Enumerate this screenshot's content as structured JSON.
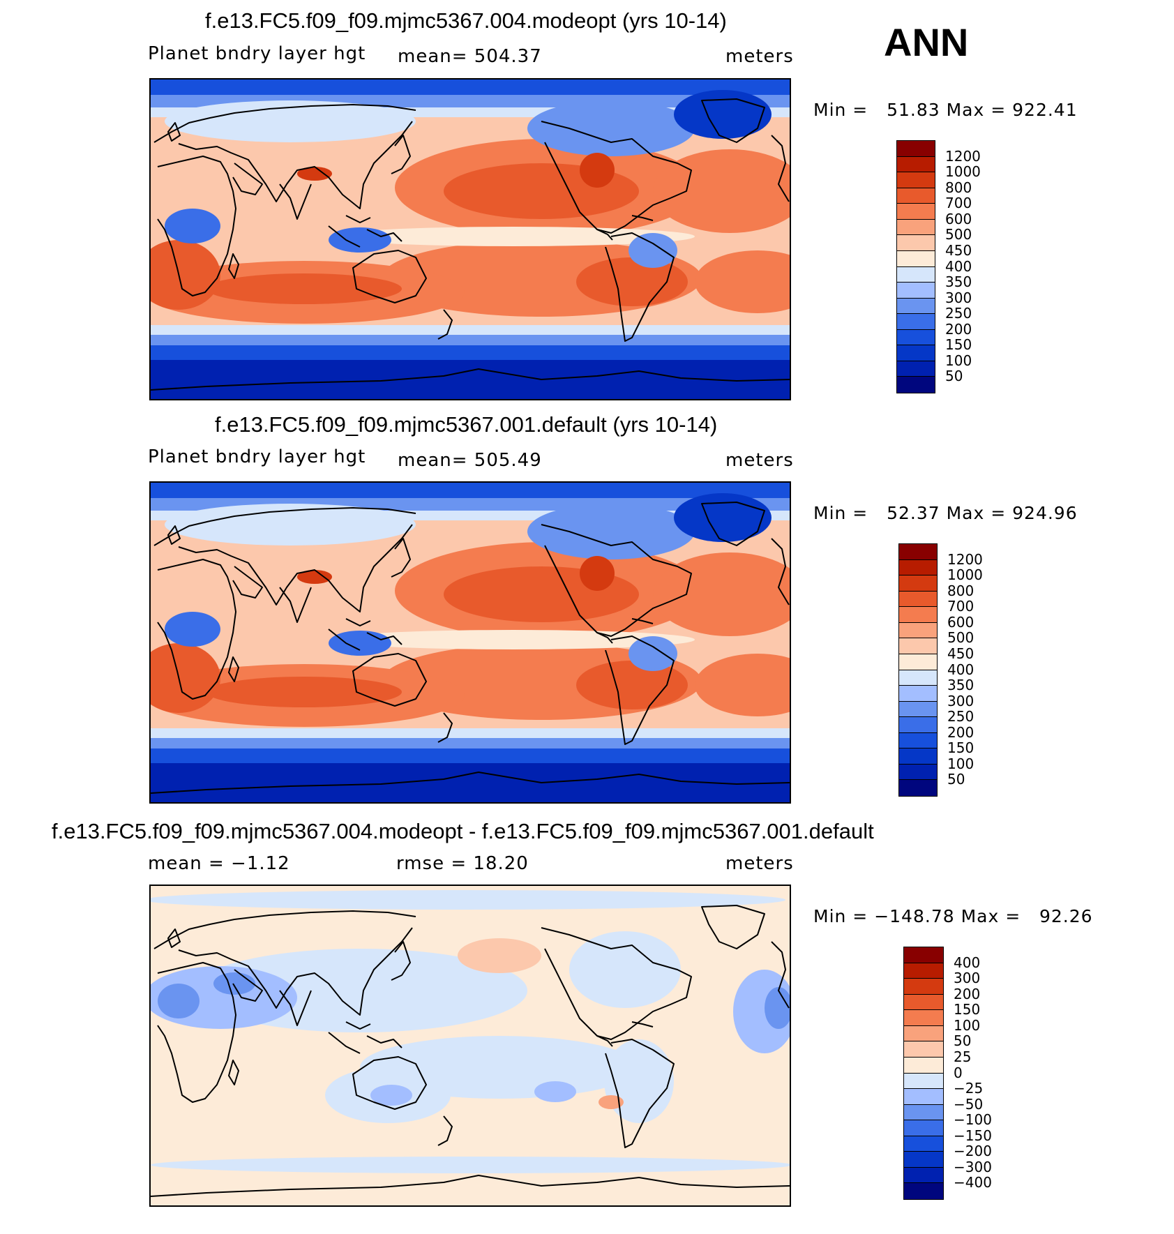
{
  "season": "ANN",
  "colors": {
    "abs_scale": [
      "#00067e",
      "#0021b0",
      "#0537c7",
      "#1750dc",
      "#3a6ee8",
      "#6a94f0",
      "#a3beff",
      "#d6e6fb",
      "#fdebd8",
      "#fcc8ac",
      "#f9a27c",
      "#f47c4f",
      "#e85a2c",
      "#d43a10",
      "#b71c00",
      "#880000"
    ],
    "diff_scale": [
      "#00067e",
      "#0021b0",
      "#0537c7",
      "#1750dc",
      "#3a6ee8",
      "#6a94f0",
      "#a3beff",
      "#d6e6fb",
      "#fdebd8",
      "#fcc8ac",
      "#f9a27c",
      "#f47c4f",
      "#e85a2c",
      "#d43a10",
      "#b71c00",
      "#880000"
    ]
  },
  "panels": [
    {
      "title": "f.e13.FC5.f09_f09.mjmc5367.004.modeopt (yrs 10-14)",
      "variable": "Planet bndry layer hgt",
      "stat": "mean=  504.37",
      "units": "meters",
      "minmax": "Min =   51.83 Max = 922.41",
      "levels": [
        "1200",
        "1000",
        "800",
        "700",
        "600",
        "500",
        "450",
        "400",
        "350",
        "300",
        "250",
        "200",
        "150",
        "100",
        "50"
      ],
      "field": "abs"
    },
    {
      "title": "f.e13.FC5.f09_f09.mjmc5367.001.default (yrs 10-14)",
      "variable": "Planet bndry layer hgt",
      "stat": "mean=  505.49",
      "units": "meters",
      "minmax": "Min =   52.37 Max = 924.96",
      "levels": [
        "1200",
        "1000",
        "800",
        "700",
        "600",
        "500",
        "450",
        "400",
        "350",
        "300",
        "250",
        "200",
        "150",
        "100",
        "50"
      ],
      "field": "abs"
    },
    {
      "title": "f.e13.FC5.f09_f09.mjmc5367.004.modeopt - f.e13.FC5.f09_f09.mjmc5367.001.default",
      "variable": "mean =   −1.12",
      "stat": "rmse =   18.20",
      "units": "meters",
      "minmax": "Min = −148.78 Max =   92.26",
      "levels": [
        "400",
        "300",
        "200",
        "150",
        "100",
        "50",
        "25",
        "0",
        "−25",
        "−50",
        "−100",
        "−150",
        "−200",
        "−300",
        "−400"
      ],
      "field": "diff"
    }
  ]
}
